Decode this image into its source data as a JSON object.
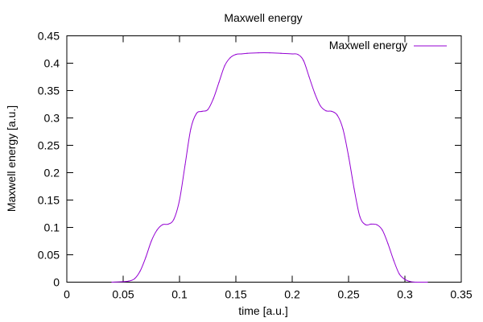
{
  "chart_data": {
    "type": "line",
    "title": "Maxwell energy",
    "xlabel": "time [a.u.]",
    "ylabel": "Maxwell energy [a.u.]",
    "xlim": [
      0,
      0.35
    ],
    "ylim": [
      0,
      0.45
    ],
    "xticks": [
      0,
      0.05,
      0.1,
      0.15,
      0.2,
      0.25,
      0.3,
      0.35
    ],
    "xtick_labels": [
      "0",
      "0.05",
      "0.1",
      "0.15",
      "0.2",
      "0.25",
      "0.3",
      "0.35"
    ],
    "yticks": [
      0,
      0.05,
      0.1,
      0.15,
      0.2,
      0.25,
      0.3,
      0.35,
      0.4,
      0.45
    ],
    "ytick_labels": [
      "0",
      "0.05",
      "0.1",
      "0.15",
      "0.2",
      "0.25",
      "0.3",
      "0.35",
      "0.4",
      "0.45"
    ],
    "grid": false,
    "legend_position": "top-right",
    "series": [
      {
        "name": "Maxwell energy",
        "color": "#9400d3",
        "x": [
          0.04,
          0.05,
          0.055,
          0.06,
          0.065,
          0.07,
          0.075,
          0.08,
          0.085,
          0.09,
          0.095,
          0.1,
          0.105,
          0.11,
          0.115,
          0.12,
          0.125,
          0.13,
          0.135,
          0.14,
          0.145,
          0.15,
          0.155,
          0.16,
          0.17,
          0.18,
          0.19,
          0.2,
          0.205,
          0.21,
          0.215,
          0.22,
          0.225,
          0.23,
          0.235,
          0.24,
          0.245,
          0.25,
          0.255,
          0.26,
          0.265,
          0.27,
          0.275,
          0.28,
          0.285,
          0.29,
          0.295,
          0.3,
          0.305,
          0.31,
          0.32
        ],
        "y": [
          0.0,
          0.001,
          0.002,
          0.006,
          0.02,
          0.045,
          0.075,
          0.095,
          0.105,
          0.106,
          0.115,
          0.15,
          0.215,
          0.28,
          0.308,
          0.312,
          0.315,
          0.335,
          0.365,
          0.395,
          0.41,
          0.416,
          0.417,
          0.418,
          0.419,
          0.419,
          0.418,
          0.417,
          0.416,
          0.405,
          0.375,
          0.345,
          0.322,
          0.313,
          0.312,
          0.305,
          0.28,
          0.23,
          0.17,
          0.12,
          0.105,
          0.106,
          0.105,
          0.095,
          0.07,
          0.04,
          0.015,
          0.005,
          0.001,
          0.0,
          0.0
        ]
      }
    ]
  }
}
